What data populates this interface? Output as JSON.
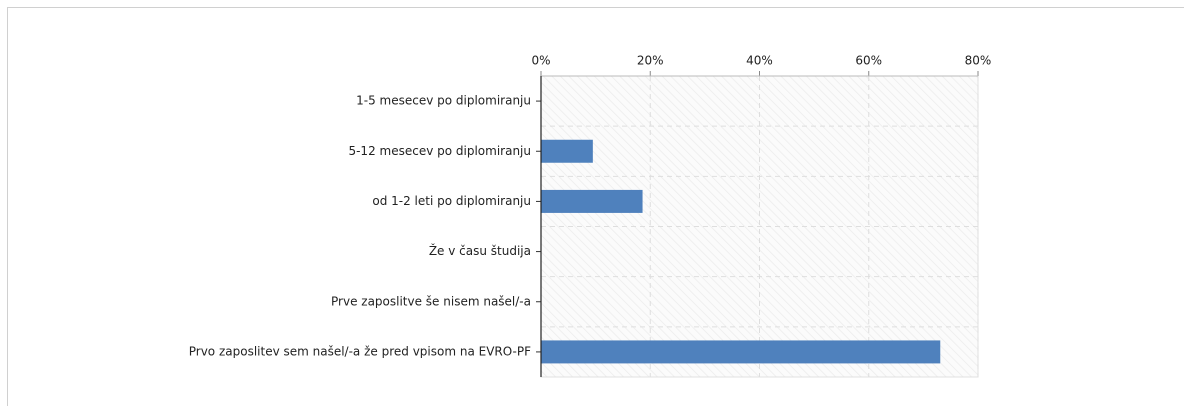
{
  "chart_data": {
    "type": "bar",
    "orientation": "horizontal",
    "categories": [
      "1-5 mesecev po diplomiranju",
      "5-12 mesecev po diplomiranju",
      "od 1-2 leti po diplomiranju",
      "Že v času študija",
      "Prve zaposlitve še nisem našel/-a",
      "Prvo zaposlitev sem našel/-a že pred vpisom na EVRO-PF"
    ],
    "values": [
      0,
      9.4,
      18.5,
      0,
      0,
      73
    ],
    "color": "#4f81bd",
    "xlim": [
      0,
      80
    ],
    "xticks": [
      {
        "value": 0,
        "label": "0%"
      },
      {
        "value": 20,
        "label": "20%"
      },
      {
        "value": 40,
        "label": "40%"
      },
      {
        "value": 60,
        "label": "60%"
      },
      {
        "value": 80,
        "label": "80%"
      }
    ],
    "grid": true
  }
}
